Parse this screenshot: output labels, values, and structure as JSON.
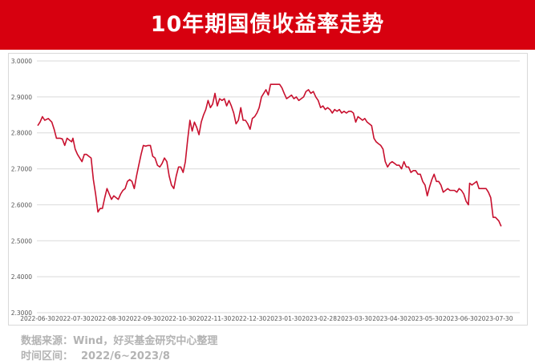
{
  "title": "10年期国债收益率走势",
  "footer": {
    "source_label": "数据来源：",
    "source_value": "Wind，好买基金研究中心整理",
    "range_label": "时间区间：",
    "range_value": "2022/6~2023/8"
  },
  "colors": {
    "banner": "#d7000f",
    "line": "#c8102e",
    "grid": "#d9d9d9",
    "footer_text": "#b3b3b3"
  },
  "chart_data": {
    "type": "line",
    "title": "10年期国债收益率走势",
    "xlabel": "",
    "ylabel": "",
    "ylim": [
      2.3,
      3.0
    ],
    "y_ticks": [
      "2.3000",
      "2.4000",
      "2.5000",
      "2.6000",
      "2.7000",
      "2.8000",
      "2.9000",
      "3.0000"
    ],
    "x_ticks": [
      "2022-06-30",
      "2022-07-30",
      "2022-08-30",
      "2022-09-30",
      "2022-10-30",
      "2022-11-30",
      "2022-12-30",
      "2023-01-30",
      "2023-02-28",
      "2023-03-30",
      "2023-04-30",
      "2023-05-30",
      "2023-06-30",
      "2023-07-30"
    ],
    "grid": "horizontal",
    "legend": "none",
    "series": [
      {
        "points": [
          [
            "2022-06-30",
            2.82
          ],
          [
            "2022-07-02",
            2.83
          ],
          [
            "2022-07-04",
            2.845
          ],
          [
            "2022-07-06",
            2.835
          ],
          [
            "2022-07-09",
            2.84
          ],
          [
            "2022-07-12",
            2.83
          ],
          [
            "2022-07-14",
            2.81
          ],
          [
            "2022-07-16",
            2.785
          ],
          [
            "2022-07-19",
            2.785
          ],
          [
            "2022-07-21",
            2.783
          ],
          [
            "2022-07-23",
            2.765
          ],
          [
            "2022-07-25",
            2.785
          ],
          [
            "2022-07-27",
            2.78
          ],
          [
            "2022-07-29",
            2.775
          ],
          [
            "2022-07-30",
            2.785
          ],
          [
            "2022-08-01",
            2.755
          ],
          [
            "2022-08-03",
            2.74
          ],
          [
            "2022-08-05",
            2.73
          ],
          [
            "2022-08-07",
            2.72
          ],
          [
            "2022-08-09",
            2.74
          ],
          [
            "2022-08-11",
            2.74
          ],
          [
            "2022-08-13",
            2.735
          ],
          [
            "2022-08-15",
            2.73
          ],
          [
            "2022-08-17",
            2.67
          ],
          [
            "2022-08-19",
            2.63
          ],
          [
            "2022-08-21",
            2.58
          ],
          [
            "2022-08-23",
            2.59
          ],
          [
            "2022-08-25",
            2.59
          ],
          [
            "2022-08-27",
            2.62
          ],
          [
            "2022-08-29",
            2.645
          ],
          [
            "2022-08-31",
            2.63
          ],
          [
            "2022-09-02",
            2.615
          ],
          [
            "2022-09-04",
            2.625
          ],
          [
            "2022-09-06",
            2.62
          ],
          [
            "2022-09-08",
            2.615
          ],
          [
            "2022-09-10",
            2.63
          ],
          [
            "2022-09-12",
            2.64
          ],
          [
            "2022-09-14",
            2.645
          ],
          [
            "2022-09-16",
            2.665
          ],
          [
            "2022-09-18",
            2.67
          ],
          [
            "2022-09-20",
            2.665
          ],
          [
            "2022-09-22",
            2.645
          ],
          [
            "2022-09-24",
            2.68
          ],
          [
            "2022-09-26",
            2.71
          ],
          [
            "2022-09-28",
            2.74
          ],
          [
            "2022-09-30",
            2.765
          ],
          [
            "2022-10-02",
            2.763
          ],
          [
            "2022-10-04",
            2.765
          ],
          [
            "2022-10-06",
            2.765
          ],
          [
            "2022-10-08",
            2.735
          ],
          [
            "2022-10-10",
            2.73
          ],
          [
            "2022-10-12",
            2.71
          ],
          [
            "2022-10-14",
            2.705
          ],
          [
            "2022-10-16",
            2.715
          ],
          [
            "2022-10-18",
            2.73
          ],
          [
            "2022-10-20",
            2.72
          ],
          [
            "2022-10-22",
            2.68
          ],
          [
            "2022-10-24",
            2.655
          ],
          [
            "2022-10-26",
            2.645
          ],
          [
            "2022-10-28",
            2.68
          ],
          [
            "2022-10-30",
            2.705
          ],
          [
            "2022-11-01",
            2.705
          ],
          [
            "2022-11-03",
            2.69
          ],
          [
            "2022-11-05",
            2.72
          ],
          [
            "2022-11-07",
            2.78
          ],
          [
            "2022-11-09",
            2.835
          ],
          [
            "2022-11-11",
            2.805
          ],
          [
            "2022-11-13",
            2.83
          ],
          [
            "2022-11-15",
            2.815
          ],
          [
            "2022-11-17",
            2.795
          ],
          [
            "2022-11-19",
            2.83
          ],
          [
            "2022-11-21",
            2.85
          ],
          [
            "2022-11-23",
            2.865
          ],
          [
            "2022-11-25",
            2.89
          ],
          [
            "2022-11-27",
            2.87
          ],
          [
            "2022-11-29",
            2.88
          ],
          [
            "2022-12-01",
            2.91
          ],
          [
            "2022-12-03",
            2.875
          ],
          [
            "2022-12-05",
            2.895
          ],
          [
            "2022-12-07",
            2.89
          ],
          [
            "2022-12-09",
            2.895
          ],
          [
            "2022-12-11",
            2.875
          ],
          [
            "2022-12-13",
            2.89
          ],
          [
            "2022-12-15",
            2.875
          ],
          [
            "2022-12-17",
            2.855
          ],
          [
            "2022-12-19",
            2.825
          ],
          [
            "2022-12-21",
            2.835
          ],
          [
            "2022-12-23",
            2.87
          ],
          [
            "2022-12-25",
            2.835
          ],
          [
            "2022-12-27",
            2.835
          ],
          [
            "2022-12-29",
            2.825
          ],
          [
            "2022-12-31",
            2.81
          ],
          [
            "2023-01-02",
            2.84
          ],
          [
            "2023-01-04",
            2.845
          ],
          [
            "2023-01-06",
            2.855
          ],
          [
            "2023-01-08",
            2.87
          ],
          [
            "2023-01-10",
            2.9
          ],
          [
            "2023-01-12",
            2.91
          ],
          [
            "2023-01-14",
            2.92
          ],
          [
            "2023-01-16",
            2.905
          ],
          [
            "2023-01-18",
            2.935
          ],
          [
            "2023-01-22",
            2.935
          ],
          [
            "2023-01-26",
            2.935
          ],
          [
            "2023-01-28",
            2.925
          ],
          [
            "2023-01-30",
            2.91
          ],
          [
            "2023-02-01",
            2.895
          ],
          [
            "2023-02-03",
            2.9
          ],
          [
            "2023-02-05",
            2.905
          ],
          [
            "2023-02-07",
            2.895
          ],
          [
            "2023-02-09",
            2.9
          ],
          [
            "2023-02-11",
            2.89
          ],
          [
            "2023-02-13",
            2.895
          ],
          [
            "2023-02-15",
            2.9
          ],
          [
            "2023-02-17",
            2.915
          ],
          [
            "2023-02-19",
            2.92
          ],
          [
            "2023-02-21",
            2.91
          ],
          [
            "2023-02-23",
            2.915
          ],
          [
            "2023-02-25",
            2.9
          ],
          [
            "2023-02-27",
            2.89
          ],
          [
            "2023-03-01",
            2.87
          ],
          [
            "2023-03-03",
            2.875
          ],
          [
            "2023-03-05",
            2.865
          ],
          [
            "2023-03-07",
            2.87
          ],
          [
            "2023-03-09",
            2.865
          ],
          [
            "2023-03-11",
            2.855
          ],
          [
            "2023-03-13",
            2.865
          ],
          [
            "2023-03-15",
            2.86
          ],
          [
            "2023-03-17",
            2.865
          ],
          [
            "2023-03-19",
            2.855
          ],
          [
            "2023-03-21",
            2.86
          ],
          [
            "2023-03-23",
            2.855
          ],
          [
            "2023-03-25",
            2.86
          ],
          [
            "2023-03-27",
            2.86
          ],
          [
            "2023-03-29",
            2.855
          ],
          [
            "2023-03-31",
            2.83
          ],
          [
            "2023-04-02",
            2.845
          ],
          [
            "2023-04-04",
            2.84
          ],
          [
            "2023-04-06",
            2.835
          ],
          [
            "2023-04-08",
            2.84
          ],
          [
            "2023-04-10",
            2.83
          ],
          [
            "2023-04-12",
            2.825
          ],
          [
            "2023-04-14",
            2.82
          ],
          [
            "2023-04-16",
            2.785
          ],
          [
            "2023-04-18",
            2.775
          ],
          [
            "2023-04-20",
            2.77
          ],
          [
            "2023-04-22",
            2.765
          ],
          [
            "2023-04-24",
            2.755
          ],
          [
            "2023-04-26",
            2.72
          ],
          [
            "2023-04-28",
            2.705
          ],
          [
            "2023-04-30",
            2.715
          ],
          [
            "2023-05-02",
            2.72
          ],
          [
            "2023-05-04",
            2.715
          ],
          [
            "2023-05-06",
            2.71
          ],
          [
            "2023-05-08",
            2.71
          ],
          [
            "2023-05-10",
            2.7
          ],
          [
            "2023-05-12",
            2.72
          ],
          [
            "2023-05-14",
            2.705
          ],
          [
            "2023-05-16",
            2.705
          ],
          [
            "2023-05-18",
            2.69
          ],
          [
            "2023-05-20",
            2.695
          ],
          [
            "2023-05-22",
            2.695
          ],
          [
            "2023-05-24",
            2.685
          ],
          [
            "2023-05-26",
            2.685
          ],
          [
            "2023-05-28",
            2.665
          ],
          [
            "2023-05-30",
            2.655
          ],
          [
            "2023-06-01",
            2.625
          ],
          [
            "2023-06-03",
            2.65
          ],
          [
            "2023-06-05",
            2.67
          ],
          [
            "2023-06-07",
            2.685
          ],
          [
            "2023-06-09",
            2.665
          ],
          [
            "2023-06-11",
            2.665
          ],
          [
            "2023-06-13",
            2.655
          ],
          [
            "2023-06-15",
            2.635
          ],
          [
            "2023-06-17",
            2.64
          ],
          [
            "2023-06-19",
            2.645
          ],
          [
            "2023-06-21",
            2.64
          ],
          [
            "2023-06-23",
            2.64
          ],
          [
            "2023-06-25",
            2.64
          ],
          [
            "2023-06-27",
            2.635
          ],
          [
            "2023-06-29",
            2.645
          ],
          [
            "2023-07-01",
            2.64
          ],
          [
            "2023-07-03",
            2.63
          ],
          [
            "2023-07-05",
            2.61
          ],
          [
            "2023-07-07",
            2.6
          ],
          [
            "2023-07-08",
            2.66
          ],
          [
            "2023-07-10",
            2.655
          ],
          [
            "2023-07-12",
            2.66
          ],
          [
            "2023-07-14",
            2.665
          ],
          [
            "2023-07-16",
            2.645
          ],
          [
            "2023-07-18",
            2.645
          ],
          [
            "2023-07-20",
            2.645
          ],
          [
            "2023-07-22",
            2.645
          ],
          [
            "2023-07-24",
            2.635
          ],
          [
            "2023-07-26",
            2.62
          ],
          [
            "2023-07-28",
            2.565
          ],
          [
            "2023-07-30",
            2.565
          ],
          [
            "2023-08-02",
            2.555
          ],
          [
            "2023-08-04",
            2.54
          ]
        ]
      }
    ]
  }
}
